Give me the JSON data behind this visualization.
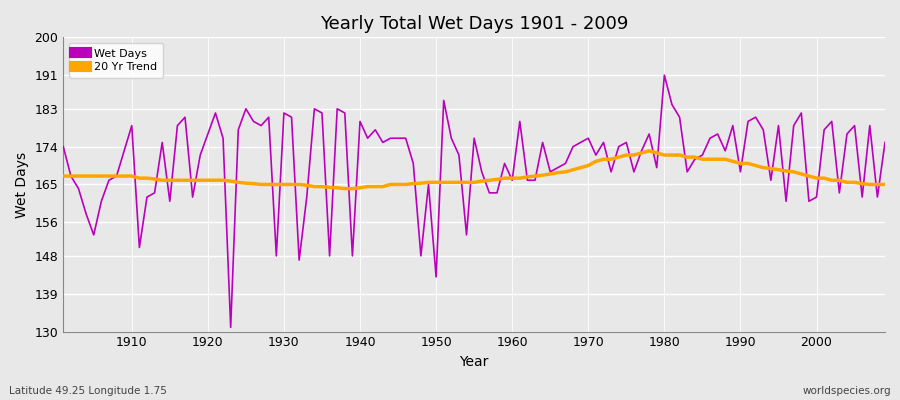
{
  "title": "Yearly Total Wet Days 1901 - 2009",
  "xlabel": "Year",
  "ylabel": "Wet Days",
  "lat_lon_label": "Latitude 49.25 Longitude 1.75",
  "watermark": "worldspecies.org",
  "ylim": [
    130,
    200
  ],
  "yticks": [
    130,
    139,
    148,
    156,
    165,
    174,
    183,
    191,
    200
  ],
  "xlim": [
    1901,
    2009
  ],
  "wet_days_color": "#bb00bb",
  "trend_color": "#ffa500",
  "background_color": "#e8e8e8",
  "grid_color": "#ffffff",
  "years": [
    1901,
    1902,
    1903,
    1904,
    1905,
    1906,
    1907,
    1908,
    1909,
    1910,
    1911,
    1912,
    1913,
    1914,
    1915,
    1916,
    1917,
    1918,
    1919,
    1920,
    1921,
    1922,
    1923,
    1924,
    1925,
    1926,
    1927,
    1928,
    1929,
    1930,
    1931,
    1932,
    1933,
    1934,
    1935,
    1936,
    1937,
    1938,
    1939,
    1940,
    1941,
    1942,
    1943,
    1944,
    1945,
    1946,
    1947,
    1948,
    1949,
    1950,
    1951,
    1952,
    1953,
    1954,
    1955,
    1956,
    1957,
    1958,
    1959,
    1960,
    1961,
    1962,
    1963,
    1964,
    1965,
    1966,
    1967,
    1968,
    1969,
    1970,
    1971,
    1972,
    1973,
    1974,
    1975,
    1976,
    1977,
    1978,
    1979,
    1980,
    1981,
    1982,
    1983,
    1984,
    1985,
    1986,
    1987,
    1988,
    1989,
    1990,
    1991,
    1992,
    1993,
    1994,
    1995,
    1996,
    1997,
    1998,
    1999,
    2000,
    2001,
    2002,
    2003,
    2004,
    2005,
    2006,
    2007,
    2008,
    2009
  ],
  "wet_days": [
    174,
    167,
    164,
    158,
    153,
    161,
    166,
    167,
    173,
    179,
    150,
    162,
    163,
    175,
    161,
    179,
    181,
    162,
    172,
    177,
    182,
    176,
    131,
    178,
    183,
    180,
    179,
    181,
    148,
    182,
    181,
    147,
    162,
    183,
    182,
    148,
    183,
    182,
    148,
    180,
    176,
    178,
    175,
    176,
    176,
    176,
    170,
    148,
    165,
    143,
    185,
    176,
    172,
    153,
    176,
    168,
    163,
    163,
    170,
    166,
    180,
    166,
    166,
    175,
    168,
    169,
    170,
    174,
    175,
    176,
    172,
    175,
    168,
    174,
    175,
    168,
    173,
    177,
    169,
    191,
    184,
    181,
    168,
    171,
    172,
    176,
    177,
    173,
    179,
    168,
    180,
    181,
    178,
    166,
    179,
    161,
    179,
    182,
    161,
    162,
    178,
    180,
    163,
    177,
    179,
    162,
    179,
    162,
    175
  ],
  "trend": [
    167.0,
    167.0,
    167.0,
    167.0,
    167.0,
    167.0,
    167.0,
    167.0,
    167.0,
    167.0,
    166.5,
    166.5,
    166.3,
    166.0,
    166.0,
    166.0,
    166.0,
    166.0,
    166.0,
    166.0,
    166.0,
    166.0,
    165.8,
    165.5,
    165.3,
    165.2,
    165.0,
    165.0,
    165.0,
    165.0,
    165.0,
    165.0,
    164.8,
    164.5,
    164.5,
    164.3,
    164.2,
    164.0,
    164.0,
    164.2,
    164.5,
    164.5,
    164.5,
    165.0,
    165.0,
    165.0,
    165.2,
    165.3,
    165.5,
    165.5,
    165.5,
    165.5,
    165.5,
    165.5,
    165.5,
    165.8,
    166.0,
    166.2,
    166.5,
    166.5,
    166.5,
    166.8,
    167.0,
    167.2,
    167.5,
    167.8,
    168.0,
    168.5,
    169.0,
    169.5,
    170.5,
    171.0,
    171.0,
    171.5,
    172.0,
    172.0,
    172.5,
    173.0,
    172.5,
    172.0,
    172.0,
    172.0,
    171.5,
    171.5,
    171.0,
    171.0,
    171.0,
    171.0,
    170.5,
    170.0,
    170.0,
    169.5,
    169.0,
    168.8,
    168.5,
    168.2,
    168.0,
    167.5,
    167.0,
    166.5,
    166.5,
    166.0,
    166.0,
    165.5,
    165.5,
    165.2,
    165.0,
    165.0,
    165.0
  ]
}
